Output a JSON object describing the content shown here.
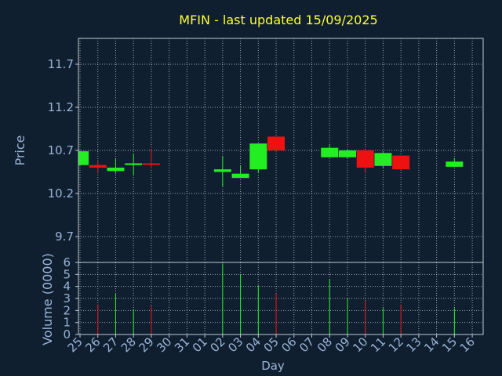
{
  "chart_data": [
    {
      "type": "candlestick",
      "title": "MFIN - last updated 15/09/2025",
      "ylabel": "Price",
      "ylim": [
        9.4,
        12.0
      ],
      "yticks": [
        "9.7",
        "10.2",
        "10.7",
        "11.2",
        "11.7"
      ],
      "grid": true,
      "series": [
        {
          "day": "25",
          "open": 10.53,
          "close": 10.69,
          "high": 10.7,
          "low": 10.52
        },
        {
          "day": "26",
          "open": 10.53,
          "close": 10.5,
          "high": 10.57,
          "low": 10.44
        },
        {
          "day": "27",
          "open": 10.46,
          "close": 10.5,
          "high": 10.6,
          "low": 10.43
        },
        {
          "day": "28",
          "open": 10.53,
          "close": 10.55,
          "high": 10.66,
          "low": 10.41
        },
        {
          "day": "29",
          "open": 10.55,
          "close": 10.54,
          "high": 10.72,
          "low": 10.49
        },
        {
          "day": "02",
          "open": 10.45,
          "close": 10.48,
          "high": 10.63,
          "low": 10.28
        },
        {
          "day": "03",
          "open": 10.38,
          "close": 10.43,
          "high": 10.52,
          "low": 10.38
        },
        {
          "day": "04",
          "open": 10.48,
          "close": 10.78,
          "high": 10.78,
          "low": 10.44
        },
        {
          "day": "05",
          "open": 10.86,
          "close": 10.7,
          "high": 10.86,
          "low": 10.68
        },
        {
          "day": "08",
          "open": 10.62,
          "close": 10.73,
          "high": 10.76,
          "low": 10.62
        },
        {
          "day": "09",
          "open": 10.62,
          "close": 10.7,
          "high": 10.71,
          "low": 10.61
        },
        {
          "day": "10",
          "open": 10.7,
          "close": 10.5,
          "high": 10.7,
          "low": 10.44
        },
        {
          "day": "11",
          "open": 10.52,
          "close": 10.67,
          "high": 10.68,
          "low": 10.49
        },
        {
          "day": "12",
          "open": 10.64,
          "close": 10.48,
          "high": 10.64,
          "low": 10.47
        },
        {
          "day": "15",
          "open": 10.51,
          "close": 10.57,
          "high": 10.61,
          "low": 10.51
        }
      ]
    },
    {
      "type": "bar",
      "ylabel": "Volume (0000)",
      "xlabel": "Day",
      "ylim": [
        0,
        6
      ],
      "yticks": [
        "0",
        "1",
        "2",
        "3",
        "4",
        "5",
        "6"
      ],
      "categories": [
        "25",
        "26",
        "27",
        "28",
        "29",
        "30",
        "31",
        "01",
        "02",
        "03",
        "04",
        "05",
        "06",
        "07",
        "08",
        "09",
        "10",
        "11",
        "12",
        "13",
        "14",
        "15",
        "16"
      ],
      "values": [
        0,
        2.5,
        3.4,
        2.1,
        2.4,
        0,
        0,
        0,
        5.9,
        5.0,
        4.1,
        3.4,
        0,
        0,
        4.6,
        3.0,
        2.8,
        2.2,
        2.5,
        0,
        0,
        2.2,
        0
      ]
    }
  ],
  "colors": {
    "background": "#0f1f30",
    "up": "#22ee22",
    "down": "#ee1111",
    "axis_text": "#9ab3d5",
    "title": "#ffff33",
    "frame": "#c0c8d0",
    "grid": "#d0d0d0"
  }
}
